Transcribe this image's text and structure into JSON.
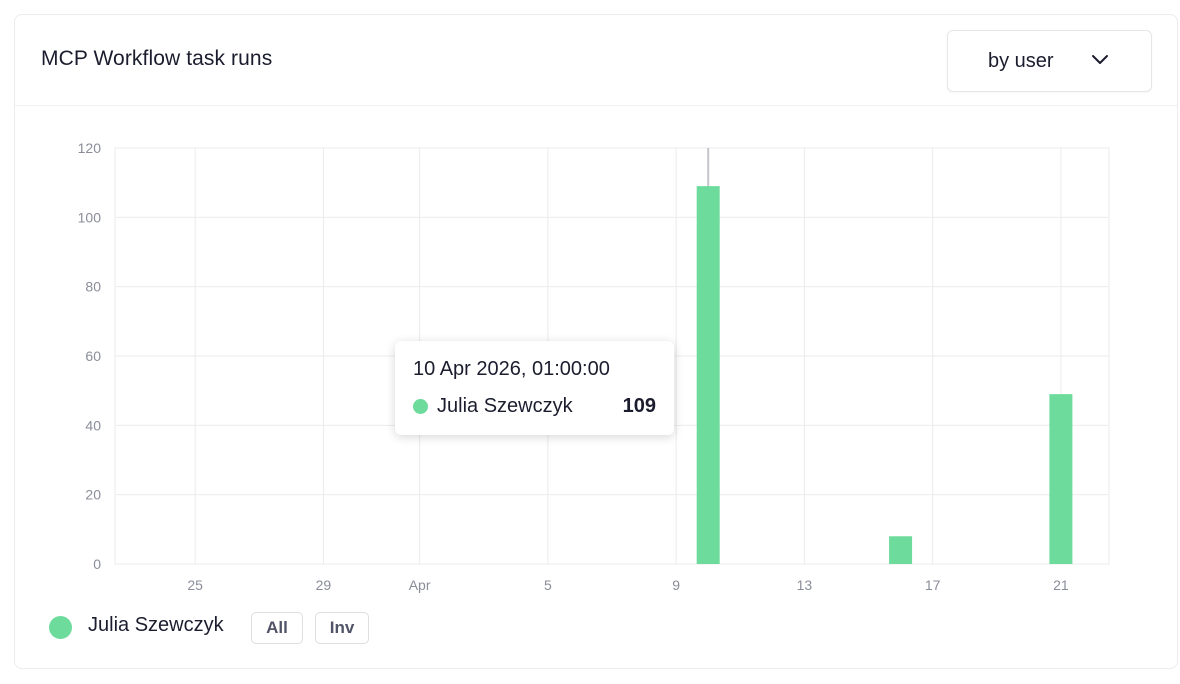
{
  "card": {
    "title": "MCP Workflow task runs",
    "group_by": {
      "selected": "by user",
      "icon": "chevron-down-icon"
    }
  },
  "colors": {
    "series": "#6ddb9c",
    "grid": "#ebebee",
    "axis_text": "#8a8d99",
    "hover_line": "#c4c6cc"
  },
  "chart_data": {
    "type": "bar",
    "title": "MCP Workflow task runs",
    "xlabel": "",
    "ylabel": "",
    "x_type": "date",
    "xlim": [
      "2026-03-22T12:00",
      "2026-04-22T12:00"
    ],
    "ylim": [
      0,
      120
    ],
    "y_ticks": [
      0,
      20,
      40,
      60,
      80,
      100,
      120
    ],
    "x_ticks": [
      {
        "date": "2026-03-25",
        "label": "25"
      },
      {
        "date": "2026-03-29",
        "label": "29"
      },
      {
        "date": "2026-04-01",
        "label": "Apr"
      },
      {
        "date": "2026-04-05",
        "label": "5"
      },
      {
        "date": "2026-04-09",
        "label": "9"
      },
      {
        "date": "2026-04-13",
        "label": "13"
      },
      {
        "date": "2026-04-17",
        "label": "17"
      },
      {
        "date": "2026-04-21",
        "label": "21"
      }
    ],
    "grid": true,
    "legend_position": "bottom-left",
    "series": [
      {
        "name": "Julia Szewczyk",
        "points": [
          {
            "date": "2026-04-10",
            "value": 109
          },
          {
            "date": "2026-04-16",
            "value": 8
          },
          {
            "date": "2026-04-21",
            "value": 49
          }
        ]
      }
    ],
    "hover_date": "2026-04-10"
  },
  "tooltip": {
    "title": "10 Apr 2026, 01:00:00",
    "series": "Julia Szewczyk",
    "value": "109"
  },
  "legend": {
    "items": [
      {
        "label": "Julia Szewczyk"
      }
    ],
    "all_label": "All",
    "invert_label": "Inv"
  }
}
